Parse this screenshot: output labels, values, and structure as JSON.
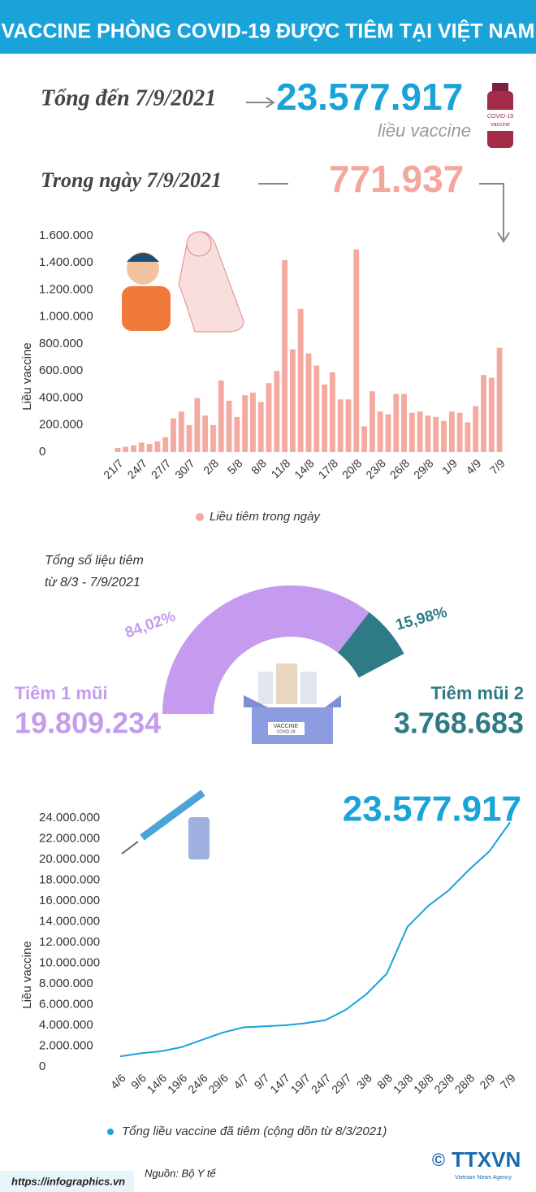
{
  "header": {
    "title": "VACCINE PHÒNG COVID-19 ĐƯỢC TIÊM TẠI VIỆT NAM"
  },
  "summary": {
    "total_label": "Tổng đến 7/9/2021",
    "total_value": "23.577.917",
    "total_unit": "liều vaccine",
    "day_label": "Trong ngày 7/9/2021",
    "day_value": "771.937"
  },
  "illustrations": {
    "vial_text": "COVID-19",
    "vial_sub": "vaccine",
    "box_text": "VACCINE",
    "box_sub": "COVID-19"
  },
  "chart_data": [
    {
      "type": "bar",
      "y_label": "Liều vaccine",
      "categories": [
        "21/7",
        null,
        null,
        "24/7",
        null,
        null,
        "27/7",
        null,
        null,
        "30/7",
        null,
        null,
        "2/8",
        null,
        null,
        "5/8",
        null,
        null,
        "8/8",
        null,
        null,
        "11/8",
        null,
        null,
        "14/8",
        null,
        null,
        "17/8",
        null,
        null,
        "20/8",
        null,
        null,
        "23/8",
        null,
        null,
        "26/8",
        null,
        null,
        "29/8",
        null,
        null,
        "1/9",
        null,
        null,
        "4/9",
        null,
        null,
        "7/9"
      ],
      "series": [
        {
          "name": "Liều tiêm trong ngày",
          "color": "#f4aaa0",
          "values": [
            30000,
            40000,
            50000,
            70000,
            60000,
            80000,
            110000,
            250000,
            300000,
            200000,
            400000,
            270000,
            200000,
            530000,
            380000,
            260000,
            420000,
            440000,
            370000,
            510000,
            600000,
            1420000,
            760000,
            1060000,
            730000,
            640000,
            500000,
            590000,
            390000,
            390000,
            1500000,
            190000,
            450000,
            300000,
            280000,
            430000,
            430000,
            290000,
            300000,
            270000,
            260000,
            230000,
            300000,
            290000,
            220000,
            340000,
            570000,
            550000,
            771937
          ]
        }
      ],
      "ylim": [
        0,
        1600000
      ],
      "yticks": [
        0,
        {
          "value": 200000,
          "label": "200.000"
        },
        {
          "value": 400000,
          "label": "400.000"
        },
        {
          "value": 600000,
          "label": "600.000"
        },
        {
          "value": 800000,
          "label": "800.000"
        },
        {
          "value": 1000000,
          "label": "1.000.000"
        },
        {
          "value": 1200000,
          "label": "1.200.000"
        },
        {
          "value": 1400000,
          "label": "1.400.000"
        },
        {
          "value": 1600000,
          "label": "1.600.000"
        }
      ]
    },
    {
      "type": "pie",
      "title": "Tổng số liệu tiêm",
      "subtitle": "từ 8/3 - 7/9/2021",
      "categories": [
        "Tiêm 1 mũi",
        "Tiêm mũi 2"
      ],
      "values": [
        84.02,
        15.98
      ],
      "value_labels": [
        "84,02%",
        "15,98%"
      ],
      "amounts": [
        "19.809.234",
        "3.768.683"
      ],
      "colors": [
        "#c59bf0",
        "#2e7b85"
      ]
    },
    {
      "type": "line",
      "y_label": "Liều vaccine",
      "annotation": "23.577.917",
      "categories": [
        "4/6",
        "9/6",
        "14/6",
        "19/6",
        "24/6",
        "29/6",
        "4/7",
        "9/7",
        "14/7",
        "19/7",
        "24/7",
        "29/7",
        "3/8",
        "8/8",
        "13/8",
        "18/8",
        "23/8",
        "28/8",
        "2/9",
        "7/9"
      ],
      "series": [
        {
          "name": "Tổng liều vaccine đã tiêm (cộng dồn từ 8/3/2021)",
          "color": "#1aa3d9",
          "values": [
            1000000,
            1300000,
            1500000,
            1900000,
            2600000,
            3300000,
            3800000,
            3900000,
            4000000,
            4200000,
            4500000,
            5500000,
            7000000,
            9000000,
            13500000,
            15500000,
            17000000,
            19000000,
            20800000,
            23577917
          ]
        }
      ],
      "ylim": [
        0,
        24000000
      ],
      "yticks": [
        0,
        {
          "value": 2000000,
          "label": "2.000.000"
        },
        {
          "value": 4000000,
          "label": "4.000.000"
        },
        {
          "value": 6000000,
          "label": "6.000.000"
        },
        {
          "value": 8000000,
          "label": "8.000.000"
        },
        {
          "value": 10000000,
          "label": "10.000.000"
        },
        {
          "value": 12000000,
          "label": "12.000.000"
        },
        {
          "value": 14000000,
          "label": "14.000.000"
        },
        {
          "value": 16000000,
          "label": "16.000.000"
        },
        {
          "value": 18000000,
          "label": "18.000.000"
        },
        {
          "value": 20000000,
          "label": "20.000.000"
        },
        {
          "value": 22000000,
          "label": "22.000.000"
        },
        {
          "value": 24000000,
          "label": "24.000.000"
        }
      ]
    }
  ],
  "footer": {
    "url": "https://infographics.vn",
    "source": "Nguồn: Bộ Y tế",
    "copyright": "©",
    "logo": "TTXVN",
    "logo_sub": "Vietnam News Agency"
  }
}
